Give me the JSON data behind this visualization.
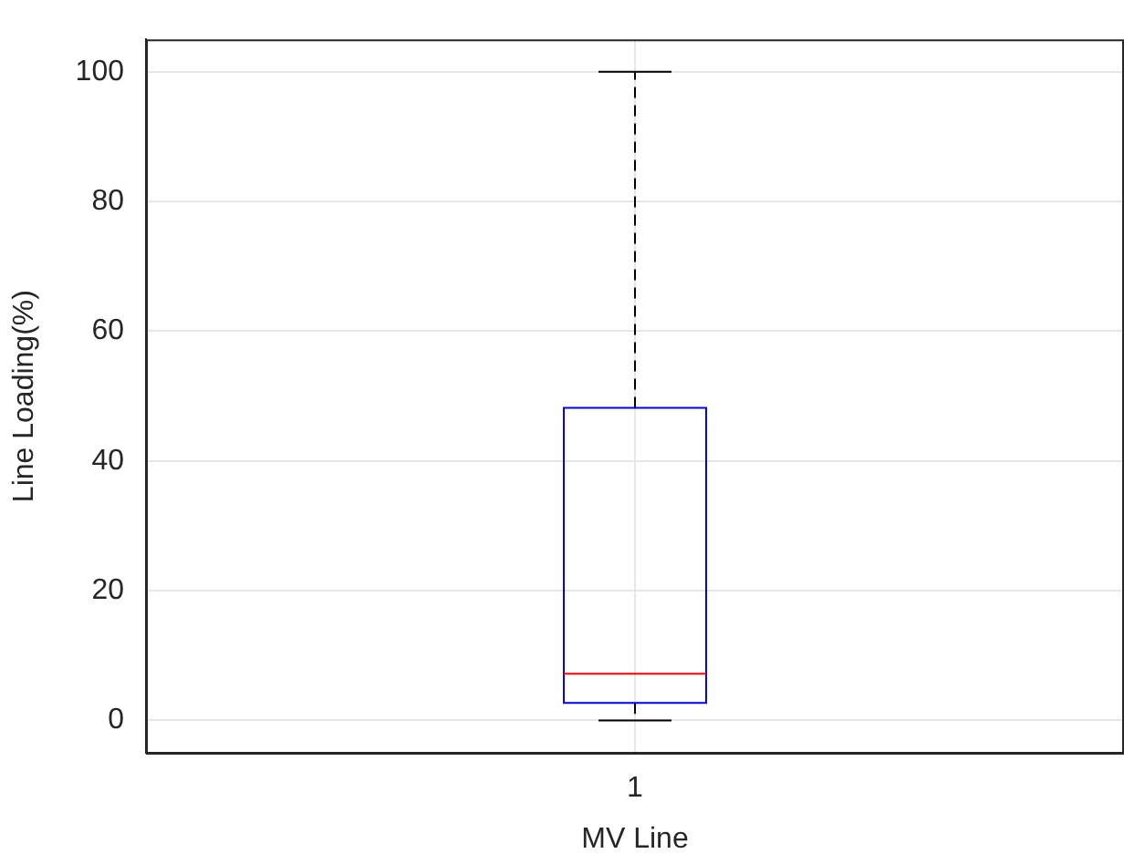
{
  "chart_data": {
    "type": "box",
    "xlabel": "MV Line",
    "ylabel": "Line Loading(%)",
    "categories": [
      "1"
    ],
    "series": [
      {
        "color": "#0000ff",
        "boxes": [
          {
            "low": 0,
            "q1": 2.7,
            "median": 7.2,
            "q3": 48.2,
            "high": 100
          }
        ]
      }
    ],
    "ylim": [
      -5,
      105
    ],
    "yticks": [
      0,
      20,
      40,
      60,
      80,
      100
    ],
    "grid": true,
    "legend": false
  }
}
